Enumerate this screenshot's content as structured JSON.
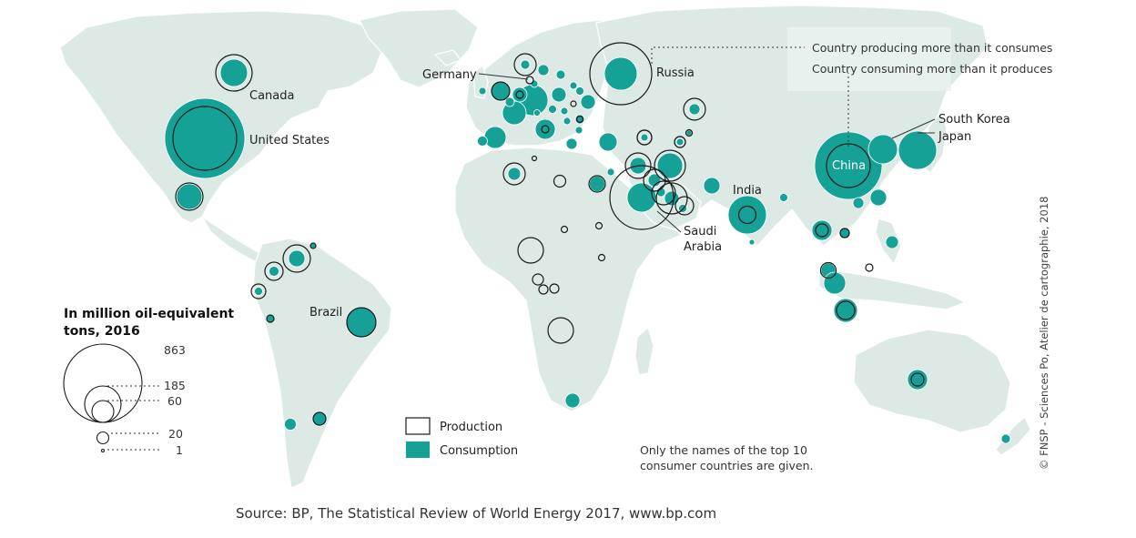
{
  "colors": {
    "land": "#dde9e4",
    "land_border": "#ffffff",
    "consumption": "#16a197",
    "production_stroke": "#1a1a1a",
    "leader": "#333333"
  },
  "map": {
    "countries": {
      "usa": "United States",
      "canada": "Canada",
      "brazil": "Brazil",
      "russia": "Russia",
      "germany": "Germany",
      "saudi_line1": "Saudi",
      "saudi_line2": "Arabia",
      "india": "India",
      "china": "China",
      "south_korea": "South Korea",
      "japan": "Japan"
    }
  },
  "annotations": {
    "producing_more": "Country producing more than it consumes",
    "consuming_more": "Country consuming more than it produces"
  },
  "legend": {
    "title_line1": "In million oil-equivalent",
    "title_line2": "tons, 2016",
    "sizes": [
      "863",
      "185",
      "60",
      "20",
      "1"
    ],
    "production": "Production",
    "consumption": "Consumption"
  },
  "note_line1": "Only the names of the top 10",
  "note_line2": "consumer countries are given.",
  "credit": "© FNSP - Sciences Po, Atelier de cartographie, 2018",
  "source": "Source: BP, The Statistical Review of World Energy 2017, www.bp.com"
}
